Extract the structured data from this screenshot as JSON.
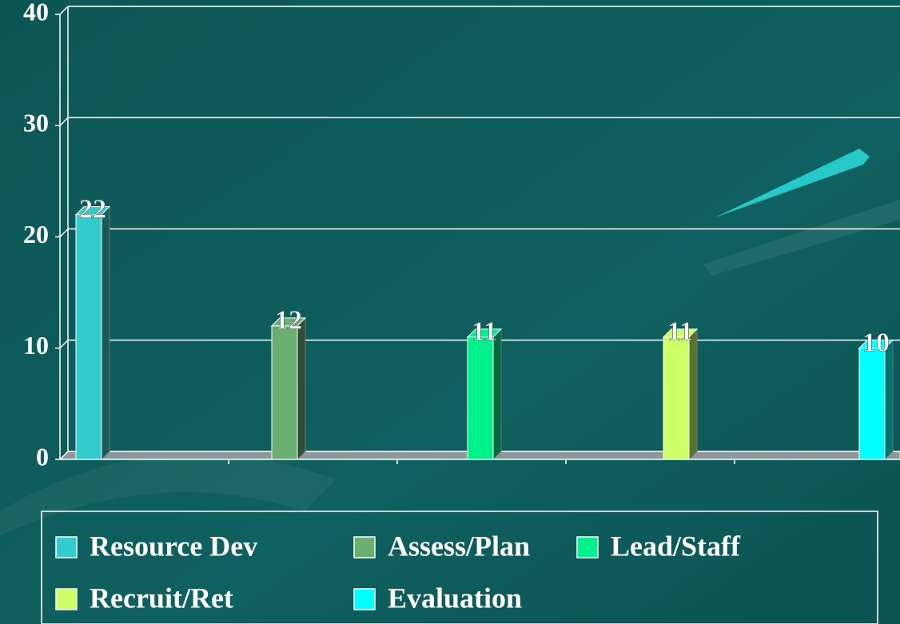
{
  "chart_data": {
    "type": "bar",
    "series": [
      {
        "name": "Resource Dev",
        "color": "#33cccc",
        "values": [
          22
        ]
      },
      {
        "name": "Assess/Plan",
        "color": "#6bae72",
        "values": [
          12
        ]
      },
      {
        "name": "Lead/Staff",
        "color": "#00f08c",
        "values": [
          11
        ]
      },
      {
        "name": "Recruit/Ret",
        "color": "#ccff66",
        "values": [
          11
        ]
      },
      {
        "name": "Evaluation",
        "color": "#00ffff",
        "values": [
          10
        ]
      }
    ],
    "ylim": [
      0,
      40
    ],
    "yticks": [
      0,
      10,
      20,
      30,
      40
    ],
    "grid": true,
    "legend": "bottom"
  }
}
